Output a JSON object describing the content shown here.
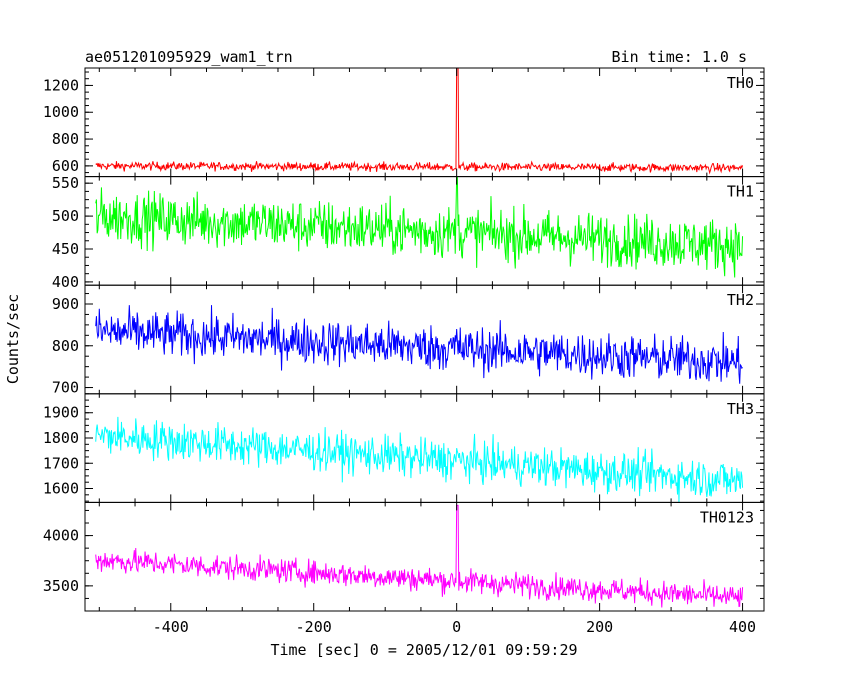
{
  "chart_data": {
    "type": "line",
    "title": "ae051201095929_wam1_trn",
    "subtitle": "Bin time: 1.0 s",
    "xlabel": "Time [sec] 0 = 2005/12/01 09:59:29",
    "ylabel": "Counts/sec",
    "xlim": [
      -520,
      430
    ],
    "xticks": [
      "-400",
      "-200",
      "0",
      "200",
      "400"
    ],
    "xtick_values": [
      -400,
      -200,
      0,
      200,
      400
    ],
    "grid": false,
    "legend": "none",
    "series": [
      {
        "name": "TH0",
        "color": "#ff0000",
        "ylim": [
          520,
          1330
        ],
        "yticks": [
          "600",
          "800",
          "1000",
          "1200"
        ],
        "ytick_values": [
          600,
          800,
          1000,
          1200
        ],
        "trend_start": 600,
        "trend_end": 585,
        "noise": 22,
        "spike_height": 1330,
        "spike_width": 3
      },
      {
        "name": "TH1",
        "color": "#00ff00",
        "ylim": [
          395,
          560
        ],
        "yticks": [
          "400",
          "450",
          "500",
          "550"
        ],
        "ytick_values": [
          400,
          450,
          500,
          550
        ],
        "trend_start": 500,
        "trend_end": 455,
        "noise": 28,
        "spike_height": 560,
        "spike_width": 2
      },
      {
        "name": "TH2",
        "color": "#0000ff",
        "ylim": [
          685,
          945
        ],
        "yticks": [
          "700",
          "800",
          "900"
        ],
        "ytick_values": [
          700,
          800,
          900
        ],
        "trend_start": 835,
        "trend_end": 760,
        "noise": 38,
        "spike_height": 840,
        "spike_width": 1
      },
      {
        "name": "TH3",
        "color": "#00ffff",
        "ylim": [
          1545,
          1975
        ],
        "yticks": [
          "1600",
          "1700",
          "1800",
          "1900"
        ],
        "ytick_values": [
          1600,
          1700,
          1800,
          1900
        ],
        "trend_start": 1810,
        "trend_end": 1630,
        "noise": 55,
        "spike_height": 1760,
        "spike_width": 1
      },
      {
        "name": "TH0123",
        "color": "#ff00ff",
        "ylim": [
          3250,
          4330
        ],
        "yticks": [
          "3500",
          "4000"
        ],
        "ytick_values": [
          3500,
          4000
        ],
        "trend_start": 3760,
        "trend_end": 3380,
        "noise": 85,
        "spike_height": 4300,
        "spike_width": 3
      }
    ]
  }
}
